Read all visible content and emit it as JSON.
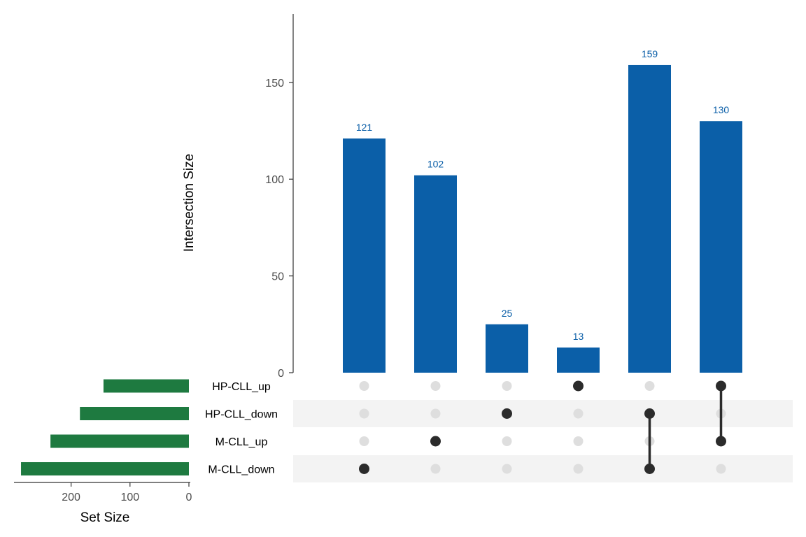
{
  "chart_data": {
    "type": "bar",
    "subtype": "upset",
    "title": "",
    "intersection_axis": {
      "ylabel": "Intersection Size",
      "ylim": [
        0,
        185
      ],
      "ticks": [
        0,
        50,
        100,
        150
      ],
      "tick_labels": [
        "0",
        "50",
        "100",
        "150"
      ]
    },
    "set_size_axis": {
      "xlabel": "Set Size",
      "ticks": [
        200,
        100,
        0
      ],
      "tick_labels": [
        "200",
        "100",
        "0"
      ],
      "xlim": [
        0,
        290
      ]
    },
    "sets": [
      {
        "name": "HP-CLL_up",
        "size": 145
      },
      {
        "name": "HP-CLL_down",
        "size": 185
      },
      {
        "name": "M-CLL_up",
        "size": 235
      },
      {
        "name": "M-CLL_down",
        "size": 285
      }
    ],
    "intersections": [
      {
        "value": 121,
        "label": "121",
        "members": [
          "M-CLL_down"
        ]
      },
      {
        "value": 102,
        "label": "102",
        "members": [
          "M-CLL_up"
        ]
      },
      {
        "value": 25,
        "label": "25",
        "members": [
          "HP-CLL_down"
        ]
      },
      {
        "value": 13,
        "label": "13",
        "members": [
          "HP-CLL_up"
        ]
      },
      {
        "value": 159,
        "label": "159",
        "members": [
          "HP-CLL_down",
          "M-CLL_down"
        ]
      },
      {
        "value": 130,
        "label": "130",
        "members": [
          "HP-CLL_up",
          "M-CLL_up"
        ]
      }
    ],
    "colors": {
      "intersection_bar": "#0b5fa8",
      "intersection_label": "#0b5fa8",
      "set_bar": "#1e7a40",
      "dot_active": "#2b2b2b",
      "dot_inactive": "#dedede",
      "stripe": "#f3f3f3"
    },
    "grid": false
  }
}
